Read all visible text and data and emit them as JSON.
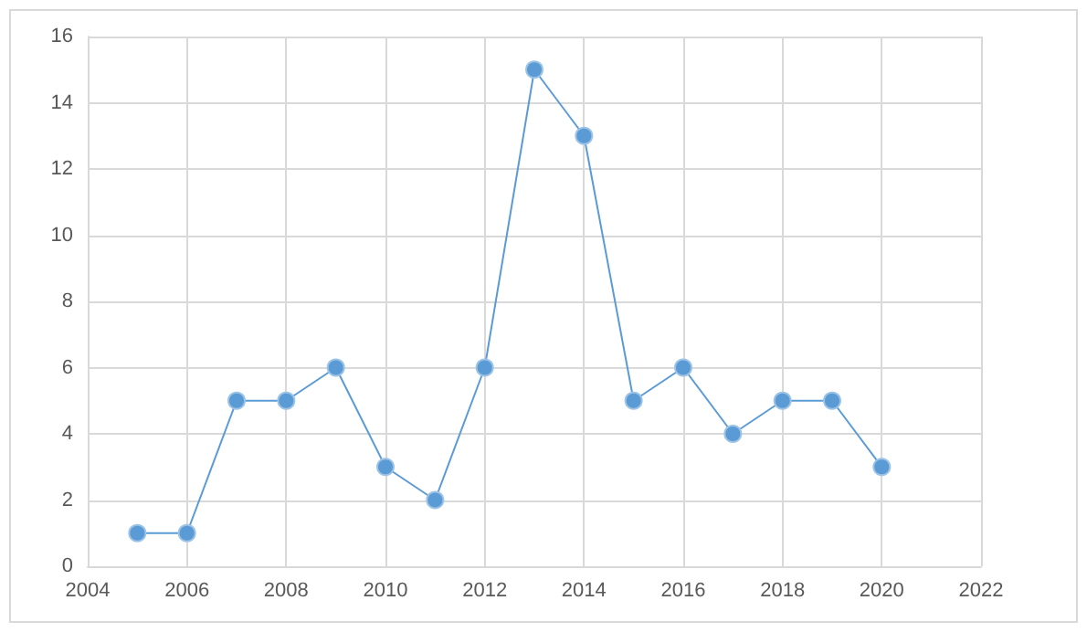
{
  "chart_data": {
    "type": "line",
    "x": [
      2005,
      2006,
      2007,
      2008,
      2009,
      2010,
      2011,
      2012,
      2013,
      2014,
      2015,
      2016,
      2017,
      2018,
      2019,
      2020
    ],
    "series": [
      {
        "color": "#5b9bd5",
        "values": [
          1,
          1,
          5,
          5,
          6,
          3,
          2,
          6,
          15,
          13,
          5,
          6,
          4,
          5,
          5,
          3
        ]
      }
    ],
    "xlim": [
      2004,
      2022
    ],
    "xticks": [
      2004,
      2006,
      2008,
      2010,
      2012,
      2014,
      2016,
      2018,
      2020,
      2022
    ],
    "ylim": [
      0,
      16
    ],
    "yticks": [
      0,
      2,
      4,
      6,
      8,
      10,
      12,
      14,
      16
    ],
    "grid": true,
    "marker": "circle",
    "line_style": "solid"
  }
}
